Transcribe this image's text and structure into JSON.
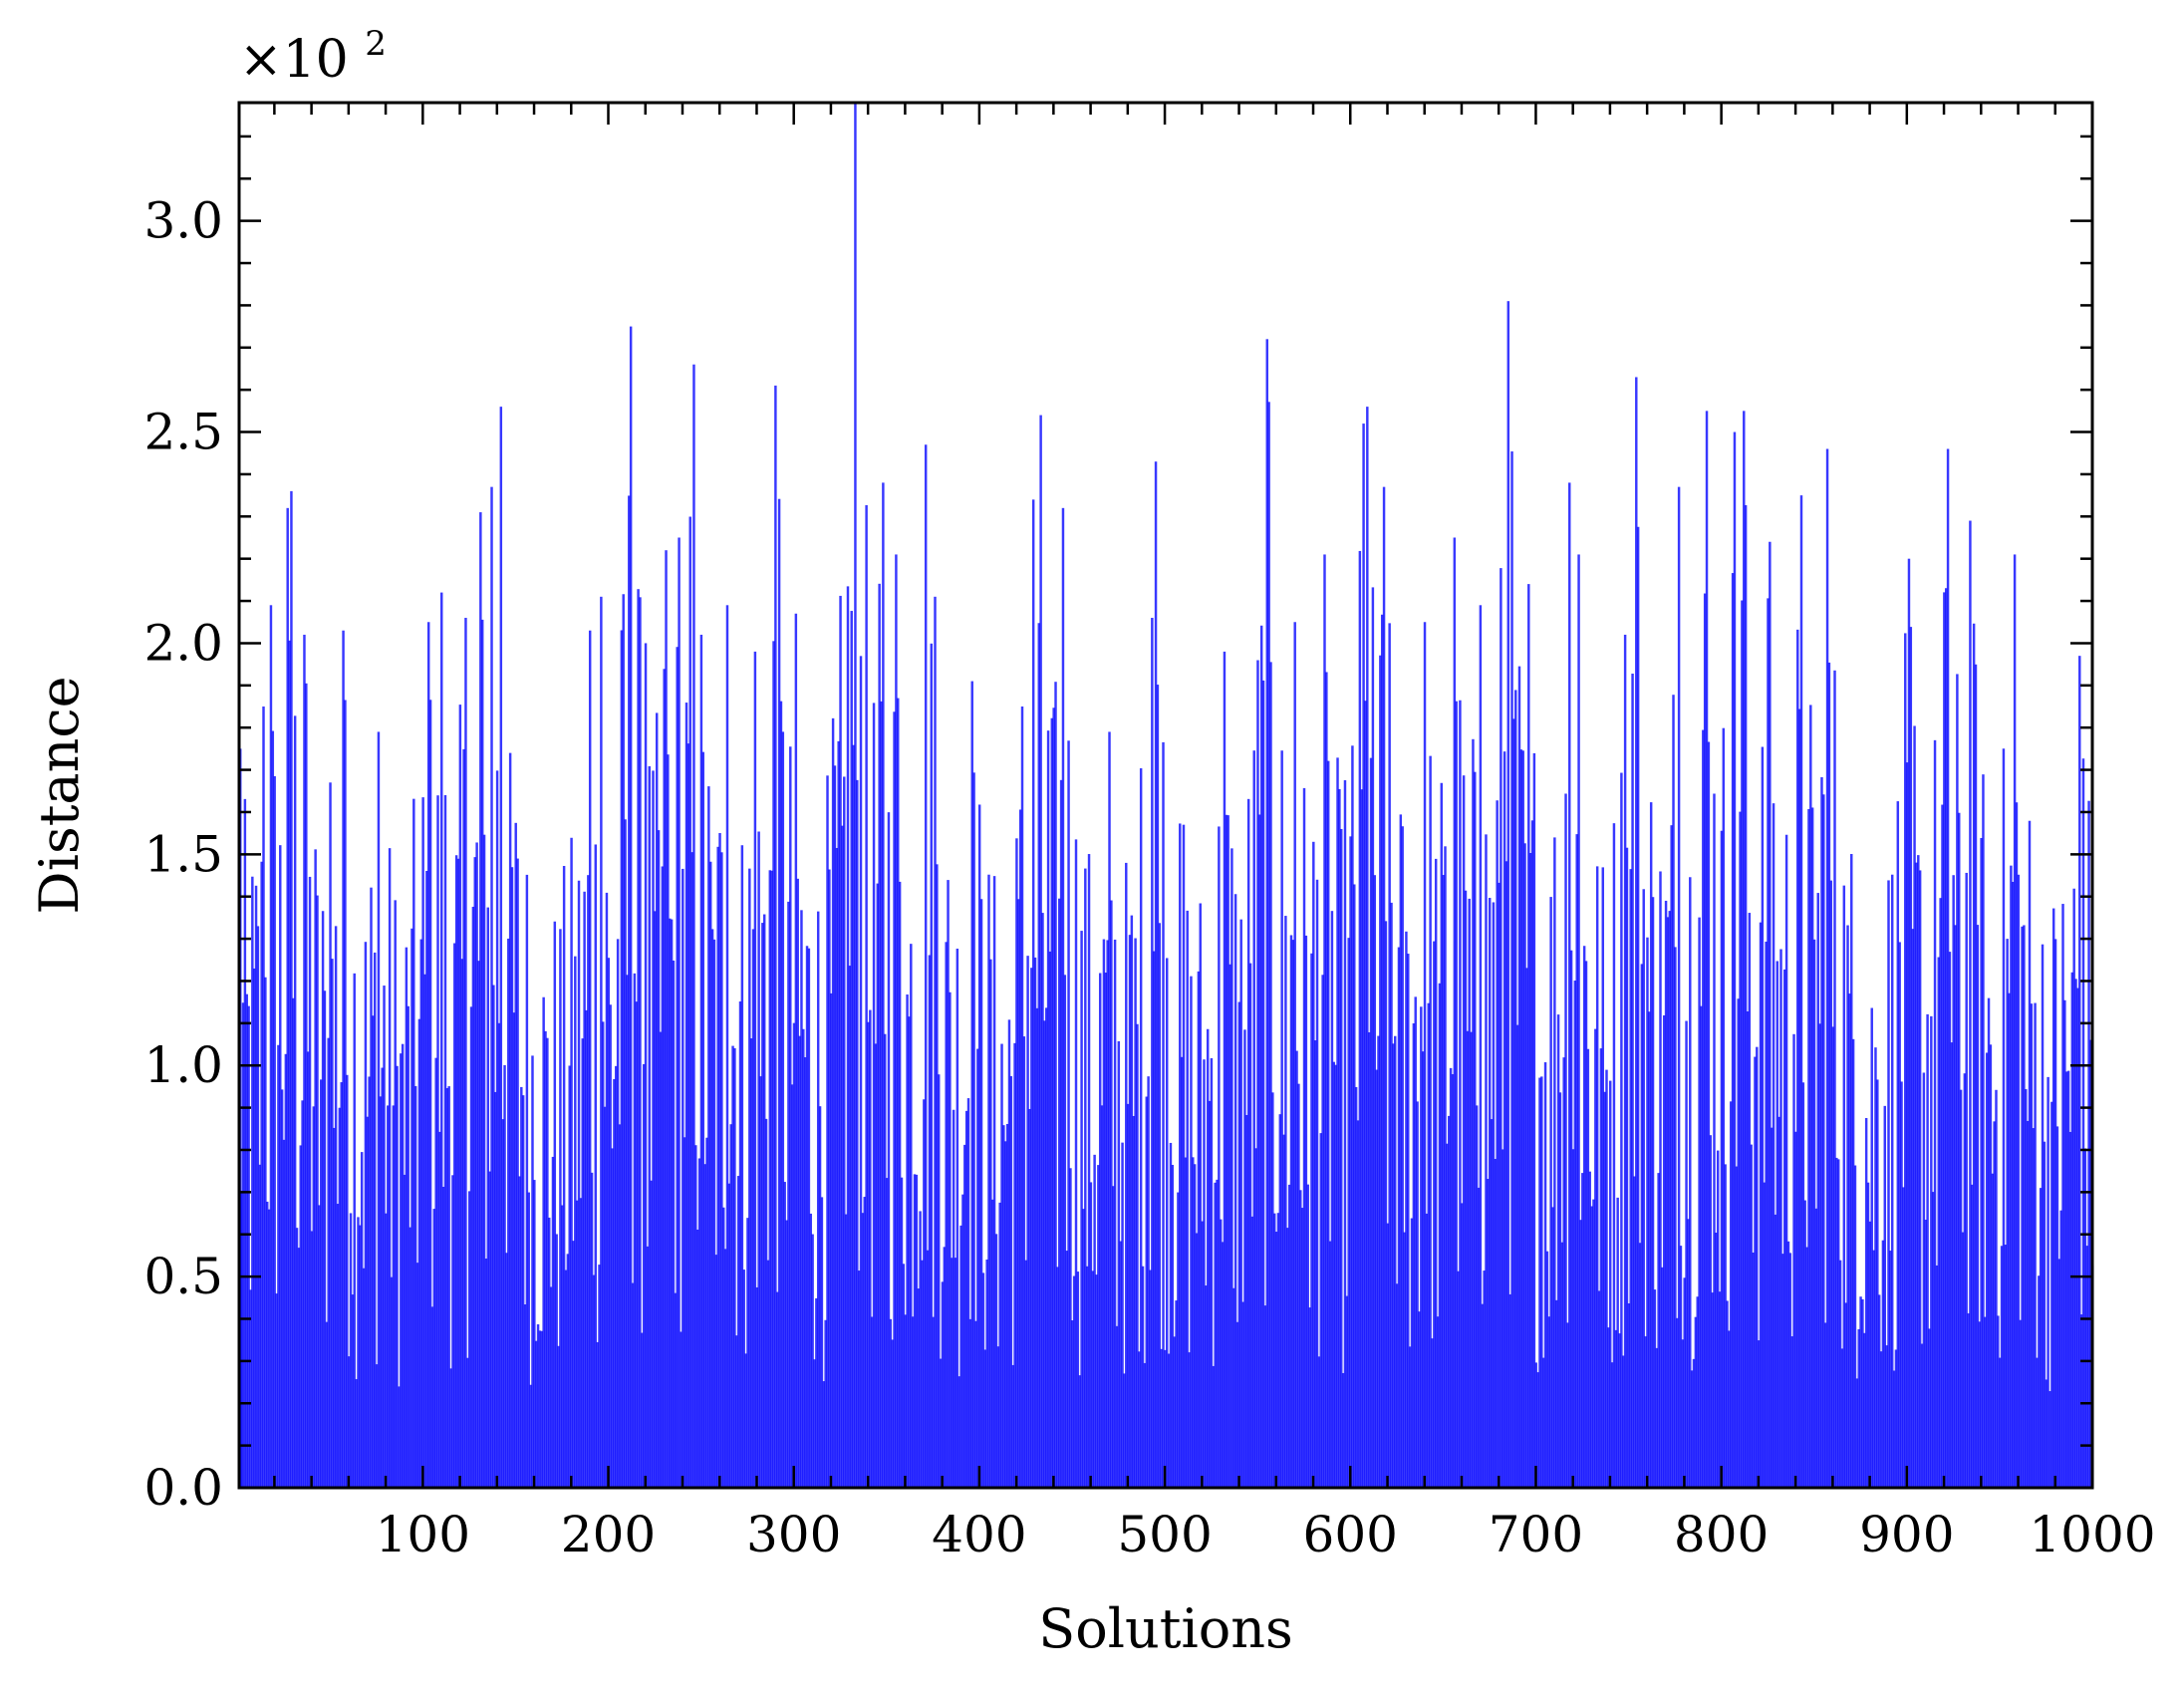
{
  "chart_data": {
    "type": "bar",
    "xlabel": "Solutions",
    "ylabel": "Distance",
    "multiplier": {
      "base": "×10",
      "exponent": "2"
    },
    "xlim": [
      1,
      1000
    ],
    "ylim": [
      0,
      3.28
    ],
    "x_ticks": [
      "100",
      "200",
      "300",
      "400",
      "500",
      "600",
      "700",
      "800",
      "900",
      "1000"
    ],
    "y_ticks": [
      "0.0",
      "0.5",
      "1.0",
      "1.5",
      "2.0",
      "2.5",
      "3.0"
    ],
    "bar_color": "#0000ff",
    "n_bars": 1000,
    "grid": false,
    "highlighted_peaks": [
      {
        "x": 1,
        "y": 1.75
      },
      {
        "x": 14,
        "y": 1.85
      },
      {
        "x": 18,
        "y": 2.09
      },
      {
        "x": 27,
        "y": 2.32
      },
      {
        "x": 29,
        "y": 2.36
      },
      {
        "x": 36,
        "y": 2.02
      },
      {
        "x": 50,
        "y": 1.67
      },
      {
        "x": 57,
        "y": 2.03
      },
      {
        "x": 76,
        "y": 1.79
      },
      {
        "x": 103,
        "y": 2.05
      },
      {
        "x": 110,
        "y": 2.12
      },
      {
        "x": 123,
        "y": 2.06
      },
      {
        "x": 131,
        "y": 2.31
      },
      {
        "x": 137,
        "y": 2.37
      },
      {
        "x": 142,
        "y": 2.56
      },
      {
        "x": 147,
        "y": 1.74
      },
      {
        "x": 190,
        "y": 2.03
      },
      {
        "x": 196,
        "y": 2.11
      },
      {
        "x": 212,
        "y": 2.75
      },
      {
        "x": 220,
        "y": 2.0
      },
      {
        "x": 231,
        "y": 2.22
      },
      {
        "x": 238,
        "y": 2.25
      },
      {
        "x": 246,
        "y": 2.66
      },
      {
        "x": 264,
        "y": 2.09
      },
      {
        "x": 279,
        "y": 1.98
      },
      {
        "x": 290,
        "y": 2.61
      },
      {
        "x": 301,
        "y": 2.07
      },
      {
        "x": 322,
        "y": 1.71
      },
      {
        "x": 333,
        "y": 3.28
      },
      {
        "x": 348,
        "y": 2.38
      },
      {
        "x": 355,
        "y": 2.21
      },
      {
        "x": 371,
        "y": 2.47
      },
      {
        "x": 376,
        "y": 2.11
      },
      {
        "x": 396,
        "y": 1.91
      },
      {
        "x": 423,
        "y": 1.85
      },
      {
        "x": 429,
        "y": 2.34
      },
      {
        "x": 433,
        "y": 2.54
      },
      {
        "x": 445,
        "y": 2.32
      },
      {
        "x": 470,
        "y": 1.79
      },
      {
        "x": 493,
        "y": 2.06
      },
      {
        "x": 495,
        "y": 2.43
      },
      {
        "x": 510,
        "y": 1.57
      },
      {
        "x": 532,
        "y": 1.98
      },
      {
        "x": 555,
        "y": 2.72
      },
      {
        "x": 570,
        "y": 2.05
      },
      {
        "x": 586,
        "y": 2.21
      },
      {
        "x": 607,
        "y": 2.52
      },
      {
        "x": 609,
        "y": 2.56
      },
      {
        "x": 618,
        "y": 2.37
      },
      {
        "x": 640,
        "y": 2.05
      },
      {
        "x": 656,
        "y": 2.25
      },
      {
        "x": 670,
        "y": 2.09
      },
      {
        "x": 685,
        "y": 2.81
      },
      {
        "x": 696,
        "y": 2.14
      },
      {
        "x": 718,
        "y": 2.38
      },
      {
        "x": 723,
        "y": 2.21
      },
      {
        "x": 748,
        "y": 2.02
      },
      {
        "x": 754,
        "y": 2.63
      },
      {
        "x": 777,
        "y": 2.37
      },
      {
        "x": 792,
        "y": 2.55
      },
      {
        "x": 807,
        "y": 2.5
      },
      {
        "x": 812,
        "y": 2.55
      },
      {
        "x": 826,
        "y": 2.24
      },
      {
        "x": 843,
        "y": 2.35
      },
      {
        "x": 857,
        "y": 2.46
      },
      {
        "x": 901,
        "y": 2.2
      },
      {
        "x": 922,
        "y": 2.46
      },
      {
        "x": 934,
        "y": 2.29
      },
      {
        "x": 958,
        "y": 2.21
      },
      {
        "x": 993,
        "y": 1.97
      }
    ]
  }
}
